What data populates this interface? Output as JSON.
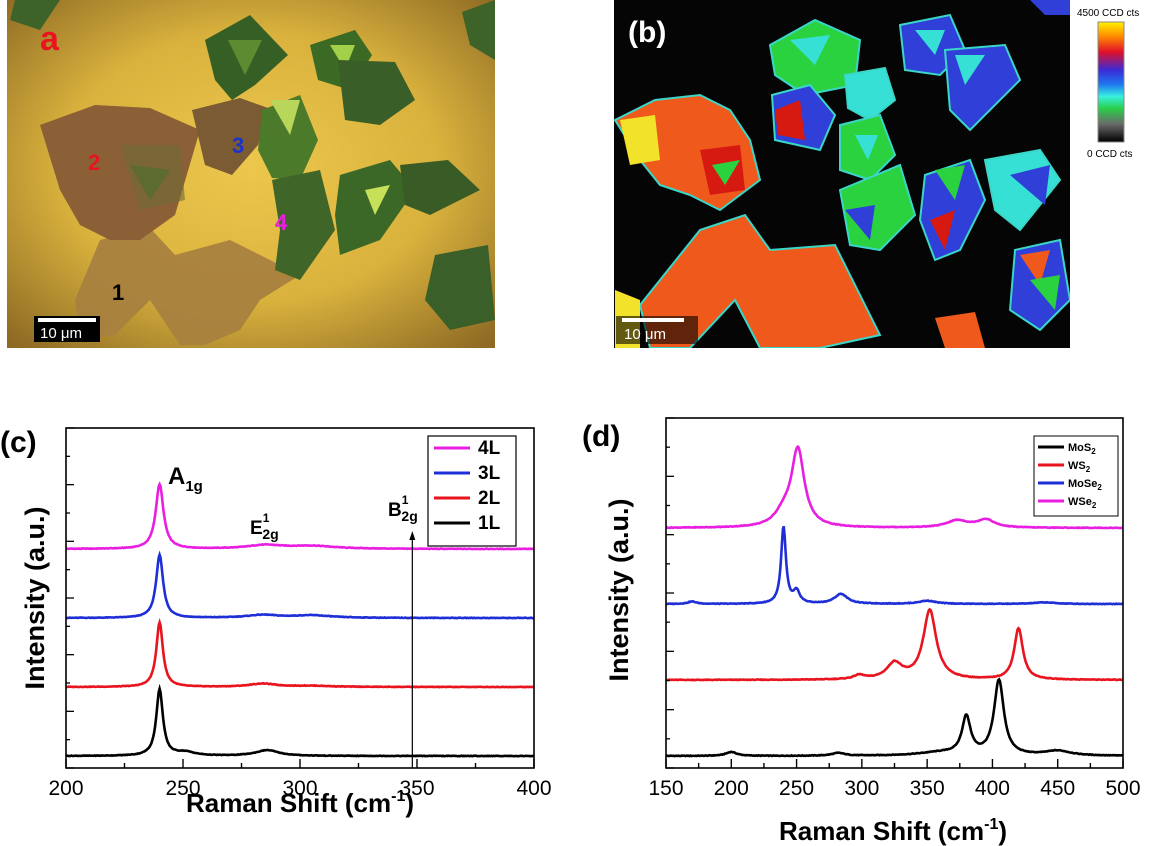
{
  "panels": {
    "a": {
      "label": "a",
      "labels": [
        "1",
        "2",
        "3",
        "4"
      ],
      "label_colors": [
        "#000000",
        "#e8141e",
        "#1a33cc",
        "#e81ee0"
      ],
      "scalebar": "10 μm",
      "colors": {
        "bg": "#d6b13c",
        "vignette": "#a47d2a",
        "layer1": "#a37c3b",
        "layer2": "#8a5f34",
        "layer3": "#6e7a2e",
        "layer4": "#3f6b27"
      }
    },
    "b": {
      "label": "(b)",
      "scalebar": "10 μm",
      "colorbar_top": "4500 CCD cts",
      "colorbar_bottom": "0 CCD cts",
      "colors": {
        "bg": "#050505",
        "orange": "#ef5a1c",
        "red": "#d61a12",
        "blue": "#2f3fd8",
        "cyan": "#36e0d4",
        "green": "#2bd23f",
        "yellow": "#f3e22a"
      }
    }
  },
  "chart_data": [
    {
      "panel": "(c)",
      "type": "line",
      "xlabel": "Raman Shift (cm",
      "xlabel_sup": "-1",
      "xlabel_tail": ")",
      "ylabel": "Intensity (a.u.)",
      "xlim": [
        200,
        400
      ],
      "xticks": [
        200,
        250,
        300,
        350,
        400
      ],
      "grid": false,
      "legend_position": "top-right",
      "annotations": [
        {
          "text": "A",
          "sub": "1g",
          "x": 240
        },
        {
          "text": "E",
          "sub": "2g",
          "sup": "1",
          "x": 285
        },
        {
          "text": "B",
          "sub": "2g",
          "sup": "1",
          "x": 348
        }
      ],
      "marker_line_x": 348,
      "series": [
        {
          "name": "4L",
          "color": "#e81ee0",
          "offset": 3,
          "peaks": [
            [
              240,
              1.8,
              2.0
            ],
            [
              285,
              0.1,
              9
            ],
            [
              305,
              0.08,
              12
            ]
          ]
        },
        {
          "name": "3L",
          "color": "#1f2fd6",
          "offset": 2,
          "peaks": [
            [
              240,
              1.75,
              1.8
            ],
            [
              284,
              0.08,
              8
            ],
            [
              305,
              0.07,
              10
            ]
          ]
        },
        {
          "name": "2L",
          "color": "#e8141e",
          "offset": 1,
          "peaks": [
            [
              240,
              1.8,
              1.7
            ],
            [
              284,
              0.09,
              7
            ],
            [
              305,
              0.03,
              10
            ]
          ]
        },
        {
          "name": "1L",
          "color": "#000000",
          "offset": 0,
          "peaks": [
            [
              240,
              1.85,
              1.7
            ],
            [
              286,
              0.16,
              6
            ],
            [
              251,
              0.1,
              5
            ]
          ]
        }
      ]
    },
    {
      "panel": "(d)",
      "type": "line",
      "xlabel": "Raman Shift (cm",
      "xlabel_sup": "-1",
      "xlabel_tail": ")",
      "ylabel": "Intensity (a.u.)",
      "xlim": [
        150,
        500
      ],
      "xticks": [
        150,
        200,
        250,
        300,
        350,
        400,
        450,
        500
      ],
      "grid": false,
      "legend_position": "top-right",
      "series": [
        {
          "name": "MoS",
          "sub": "2",
          "color": "#000000",
          "offset": 0,
          "peaks": [
            [
              380,
              0.95,
              4
            ],
            [
              405,
              1.9,
              4.5
            ],
            [
              200,
              0.1,
              5
            ],
            [
              282,
              0.07,
              6
            ],
            [
              450,
              0.12,
              12
            ],
            [
              360,
              0.08,
              20
            ]
          ]
        },
        {
          "name": "WS",
          "sub": "2",
          "color": "#e8141e",
          "offset": 1,
          "peaks": [
            [
              352,
              1.75,
              6
            ],
            [
              420,
              1.3,
              4
            ],
            [
              325,
              0.4,
              7
            ],
            [
              298,
              0.1,
              5
            ]
          ]
        },
        {
          "name": "MoSe",
          "sub": "2",
          "color": "#1f2fd6",
          "offset": 2,
          "peaks": [
            [
              240,
              1.95,
              2.2
            ],
            [
              284,
              0.25,
              6
            ],
            [
              250,
              0.3,
              3
            ],
            [
              170,
              0.06,
              4
            ],
            [
              350,
              0.08,
              8
            ],
            [
              440,
              0.04,
              10
            ]
          ]
        },
        {
          "name": "WSe",
          "sub": "2",
          "color": "#e81ee0",
          "offset": 3,
          "peaks": [
            [
              251,
              1.95,
              6
            ],
            [
              240,
              0.3,
              8
            ],
            [
              373,
              0.18,
              10
            ],
            [
              395,
              0.2,
              8
            ]
          ]
        }
      ]
    }
  ]
}
